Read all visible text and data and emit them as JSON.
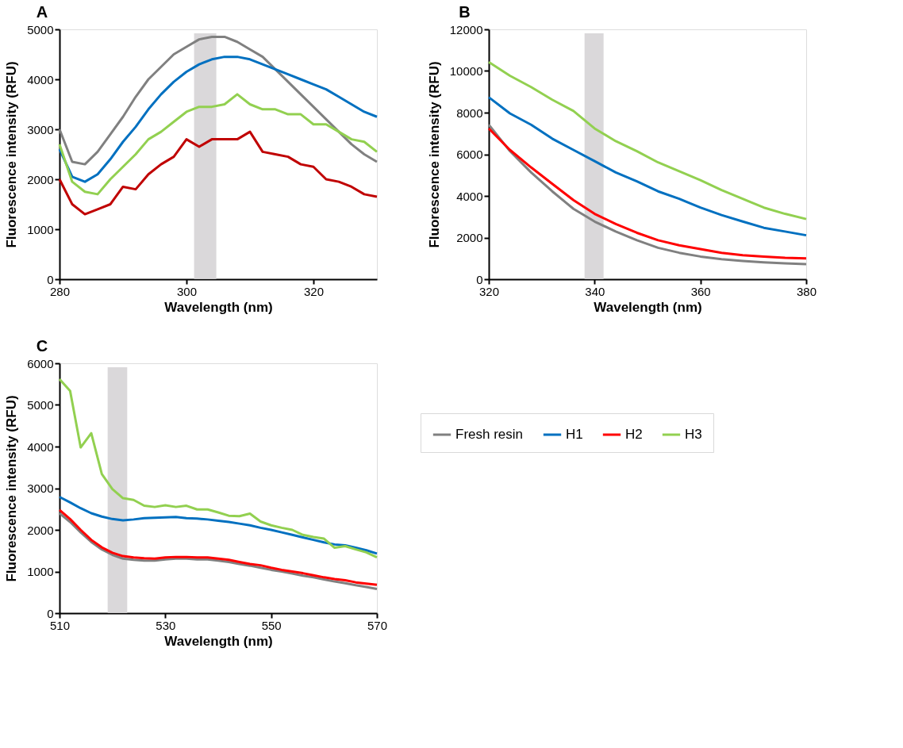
{
  "chart_data": [
    {
      "type": "line",
      "title": "A",
      "xlabel": "Wavelength (nm)",
      "ylabel": "Fluorescence intensity  (RFU)",
      "x": [
        280,
        282,
        284,
        286,
        288,
        290,
        292,
        294,
        296,
        298,
        300,
        302,
        304,
        306,
        308,
        310,
        312,
        314,
        316,
        318,
        320,
        322,
        324,
        326,
        328,
        330
      ],
      "series": [
        {
          "color": "#808080",
          "values": [
            3000,
            2350,
            2300,
            2550,
            2900,
            3250,
            3650,
            4000,
            4250,
            4500,
            4650,
            4800,
            4850,
            4850,
            4750,
            4600,
            4450,
            4200,
            3950,
            3700,
            3450,
            3200,
            2950,
            2700,
            2500,
            2350
          ]
        },
        {
          "color": "#0070c0",
          "values": [
            2600,
            2050,
            1950,
            2100,
            2400,
            2750,
            3050,
            3400,
            3700,
            3950,
            4150,
            4300,
            4400,
            4450,
            4450,
            4400,
            4300,
            4200,
            4100,
            4000,
            3900,
            3800,
            3650,
            3500,
            3350,
            3250
          ]
        },
        {
          "color": "#c00000",
          "values": [
            2000,
            1500,
            1300,
            1400,
            1500,
            1850,
            1800,
            2100,
            2300,
            2450,
            2800,
            2650,
            2800,
            2800,
            2800,
            2950,
            2550,
            2500,
            2450,
            2300,
            2250,
            2000,
            1950,
            1850,
            1700,
            1650
          ]
        },
        {
          "color": "#92d050",
          "values": [
            2700,
            1950,
            1750,
            1700,
            2000,
            2250,
            2500,
            2800,
            2950,
            3150,
            3350,
            3450,
            3450,
            3500,
            3700,
            3500,
            3400,
            3400,
            3300,
            3300,
            3100,
            3100,
            2950,
            2800,
            2750,
            2550
          ]
        }
      ],
      "xlim": [
        280,
        330
      ],
      "xticks": [
        280,
        300,
        320
      ],
      "ylim": [
        0,
        5000
      ],
      "yticks": [
        0,
        1000,
        2000,
        3000,
        4000,
        5000
      ],
      "bands": [
        {
          "axis": "x",
          "from": 301.2,
          "to": 304.7,
          "color": "#d3d1d3"
        }
      ],
      "grid": false,
      "legend": false,
      "marker": "none",
      "line_style": "solid"
    },
    {
      "type": "line",
      "title": "B",
      "xlabel": "Wavelength (nm)",
      "ylabel": "Fluorescence intensity  (RFU)",
      "x": [
        320,
        324,
        328,
        332,
        336,
        340,
        344,
        348,
        352,
        356,
        360,
        364,
        368,
        372,
        376,
        380
      ],
      "series": [
        {
          "color": "#808080",
          "values": [
            7420,
            6150,
            5130,
            4220,
            3380,
            2770,
            2290,
            1870,
            1510,
            1270,
            1090,
            960,
            880,
            810,
            760,
            720
          ]
        },
        {
          "color": "#0070c0",
          "values": [
            8740,
            7960,
            7420,
            6750,
            6210,
            5670,
            5130,
            4700,
            4220,
            3860,
            3440,
            3080,
            2770,
            2470,
            2290,
            2110
          ]
        },
        {
          "color": "#ff0000",
          "values": [
            7240,
            6210,
            5370,
            4580,
            3800,
            3140,
            2650,
            2230,
            1870,
            1630,
            1450,
            1270,
            1150,
            1090,
            1030,
            1000
          ]
        },
        {
          "color": "#92d050",
          "values": [
            10430,
            9770,
            9230,
            8620,
            8080,
            7240,
            6630,
            6150,
            5610,
            5190,
            4760,
            4280,
            3860,
            3440,
            3140,
            2890
          ]
        }
      ],
      "xlim": [
        320,
        380
      ],
      "xticks": [
        320,
        340,
        360,
        380
      ],
      "ylim": [
        0,
        12000
      ],
      "yticks": [
        0,
        2000,
        4000,
        6000,
        8000,
        10000,
        12000
      ],
      "bands": [
        {
          "axis": "x",
          "from": 338.1,
          "to": 341.7,
          "color": "#d3d1d3"
        }
      ],
      "grid": false,
      "legend": false,
      "marker": "none",
      "line_style": "solid"
    },
    {
      "type": "line",
      "title": "C",
      "xlabel": "Wavelength (nm)",
      "ylabel": "Fluorescence intensity  (RFU)",
      "x": [
        510,
        512,
        514,
        516,
        518,
        520,
        522,
        524,
        526,
        528,
        530,
        532,
        534,
        536,
        538,
        540,
        542,
        544,
        546,
        548,
        550,
        552,
        554,
        556,
        558,
        560,
        562,
        564,
        566,
        568,
        570
      ],
      "series": [
        {
          "name": "Fresh resin",
          "color": "#808080",
          "values": [
            2400,
            2190,
            1940,
            1710,
            1530,
            1400,
            1310,
            1280,
            1260,
            1260,
            1290,
            1310,
            1310,
            1290,
            1290,
            1260,
            1230,
            1180,
            1140,
            1090,
            1040,
            1000,
            950,
            900,
            860,
            810,
            760,
            720,
            670,
            630,
            580
          ]
        },
        {
          "name": "H1",
          "color": "#0070c0",
          "values": [
            2790,
            2660,
            2520,
            2400,
            2320,
            2260,
            2230,
            2250,
            2280,
            2290,
            2300,
            2310,
            2280,
            2270,
            2250,
            2220,
            2190,
            2150,
            2110,
            2050,
            2000,
            1940,
            1880,
            1820,
            1760,
            1700,
            1650,
            1630,
            1570,
            1510,
            1430
          ]
        },
        {
          "name": "H2",
          "color": "#ff0000",
          "values": [
            2480,
            2260,
            2000,
            1760,
            1580,
            1450,
            1370,
            1340,
            1320,
            1310,
            1340,
            1350,
            1350,
            1340,
            1340,
            1310,
            1280,
            1230,
            1180,
            1150,
            1090,
            1040,
            1000,
            960,
            910,
            860,
            820,
            790,
            740,
            710,
            680
          ]
        },
        {
          "name": "H3",
          "color": "#92d050",
          "values": [
            5620,
            5340,
            3980,
            4320,
            3340,
            2980,
            2760,
            2720,
            2580,
            2550,
            2590,
            2550,
            2580,
            2490,
            2490,
            2420,
            2340,
            2330,
            2390,
            2200,
            2110,
            2050,
            2000,
            1880,
            1830,
            1790,
            1570,
            1610,
            1530,
            1460,
            1340
          ]
        }
      ],
      "xlim": [
        510,
        570
      ],
      "xticks": [
        510,
        530,
        550,
        570
      ],
      "ylim": [
        0,
        6000
      ],
      "yticks": [
        0,
        1000,
        2000,
        3000,
        4000,
        5000,
        6000
      ],
      "bands": [
        {
          "axis": "x",
          "from": 519.1,
          "to": 522.8,
          "color": "#d3d1d3"
        }
      ],
      "grid": false,
      "legend": "right",
      "marker": "none",
      "line_style": "solid"
    }
  ]
}
